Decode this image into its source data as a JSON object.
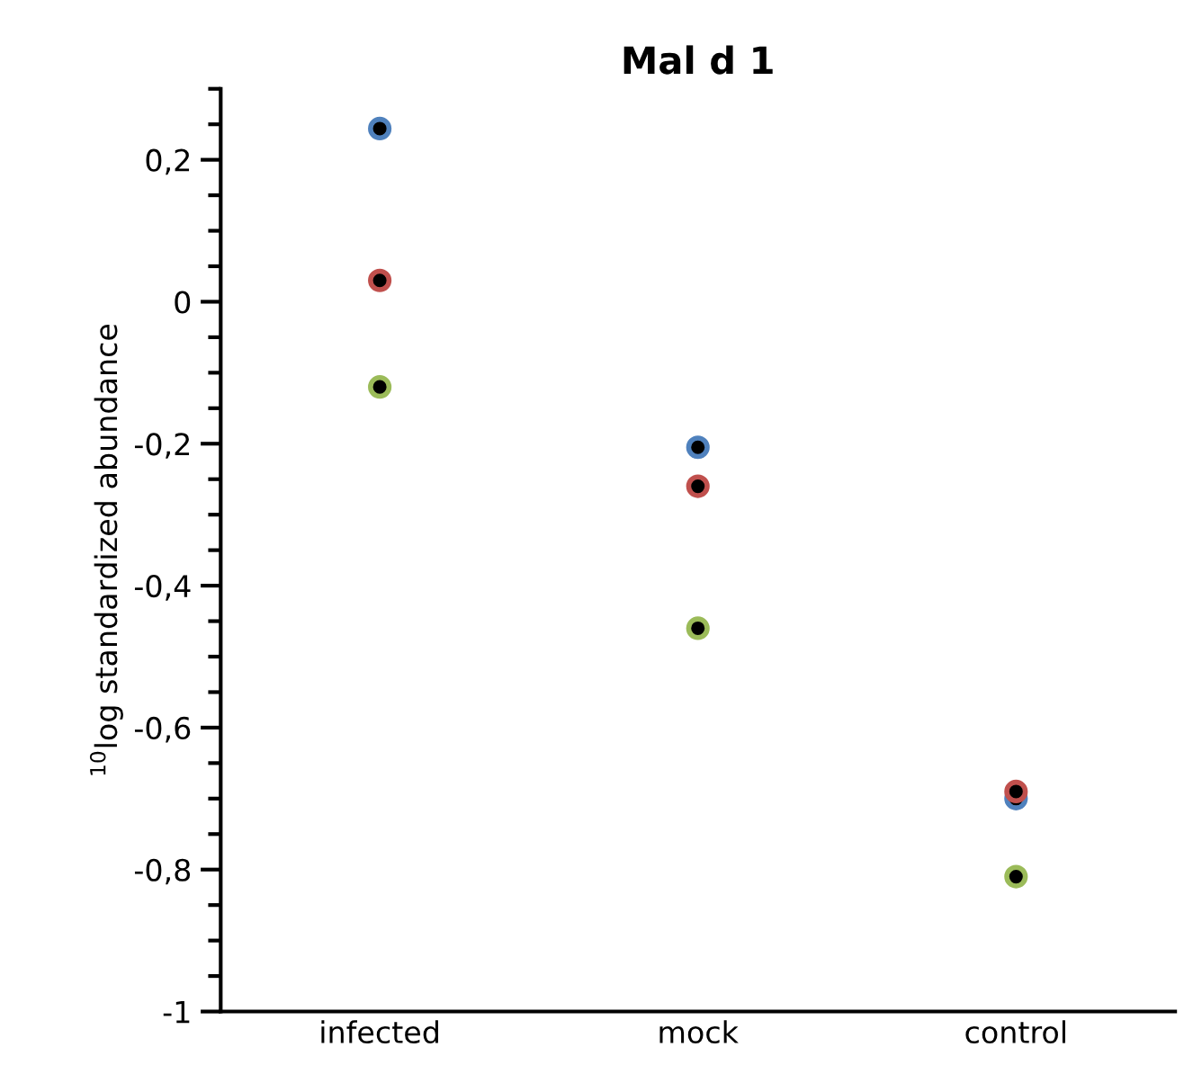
{
  "chart_data": {
    "type": "scatter",
    "title": "Mal d 1",
    "ylabel": "$^{10}$log standardized abundance",
    "categories": [
      "infected",
      "mock",
      "control"
    ],
    "series": [
      {
        "color": "#4f81bd",
        "values": [
          0.244,
          -0.205,
          -0.7
        ]
      },
      {
        "color": "#c0504d",
        "values": [
          0.03,
          -0.26,
          -0.69
        ]
      },
      {
        "color": "#9bbb59",
        "values": [
          -0.12,
          -0.46,
          -0.81
        ]
      }
    ],
    "marker": "circle",
    "grid": false,
    "legend": false,
    "ylim": [
      -1,
      0.3
    ],
    "yticks": [
      {
        "value": -1,
        "label": "-1"
      },
      {
        "value": -0.95,
        "label": null
      },
      {
        "value": -0.9,
        "label": null
      },
      {
        "value": -0.85,
        "label": null
      },
      {
        "value": -0.8,
        "label": "-0,8"
      },
      {
        "value": -0.75,
        "label": null
      },
      {
        "value": -0.7,
        "label": null
      },
      {
        "value": -0.65,
        "label": null
      },
      {
        "value": -0.6,
        "label": "-0,6"
      },
      {
        "value": -0.55,
        "label": null
      },
      {
        "value": -0.5,
        "label": null
      },
      {
        "value": -0.45,
        "label": null
      },
      {
        "value": -0.4,
        "label": "-0,4"
      },
      {
        "value": -0.35,
        "label": null
      },
      {
        "value": -0.3,
        "label": null
      },
      {
        "value": -0.25,
        "label": null
      },
      {
        "value": -0.2,
        "label": "-0,2"
      },
      {
        "value": -0.15,
        "label": null
      },
      {
        "value": -0.1,
        "label": null
      },
      {
        "value": -0.05,
        "label": null
      },
      {
        "value": 0,
        "label": "0"
      },
      {
        "value": 0.05,
        "label": null
      },
      {
        "value": 0.1,
        "label": null
      },
      {
        "value": 0.15,
        "label": null
      },
      {
        "value": 0.2,
        "label": "0,2"
      },
      {
        "value": 0.25,
        "label": null
      },
      {
        "value": 0.3,
        "label": null
      }
    ]
  }
}
